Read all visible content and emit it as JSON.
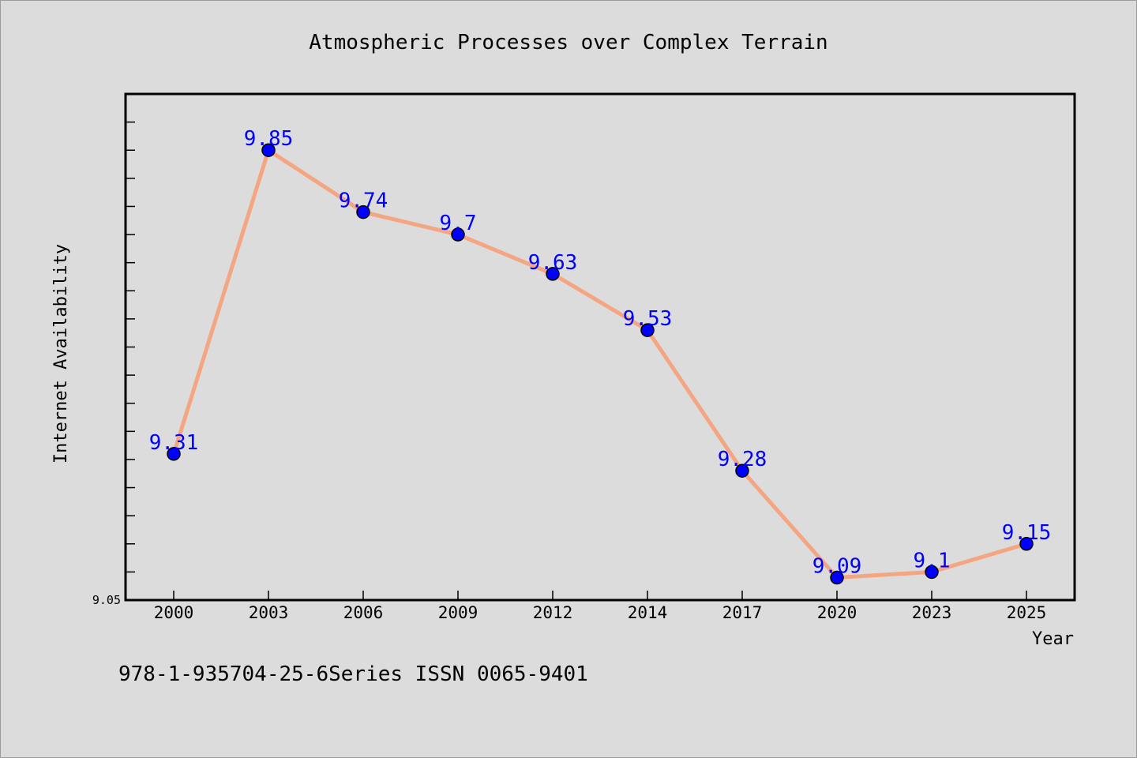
{
  "chart_data": {
    "type": "line",
    "title": "Atmospheric Processes over Complex Terrain",
    "xlabel": "Year",
    "ylabel": "Internet Availability",
    "categories": [
      "2000",
      "2003",
      "2006",
      "2009",
      "2012",
      "2014",
      "2017",
      "2020",
      "2023",
      "2025"
    ],
    "series": [
      {
        "values": [
          9.31,
          9.85,
          9.74,
          9.7,
          9.63,
          9.53,
          9.28,
          9.09,
          9.1,
          9.15
        ]
      }
    ],
    "ylim": [
      9.05,
      9.95
    ],
    "yticks_labeled": [
      "9.05"
    ],
    "grid": false,
    "line_color": "#f4a582",
    "marker_color": "#0000ff",
    "label_color": "#0000ff"
  },
  "footer": {
    "text": "978-1-935704-25-6Series ISSN 0065-9401"
  }
}
